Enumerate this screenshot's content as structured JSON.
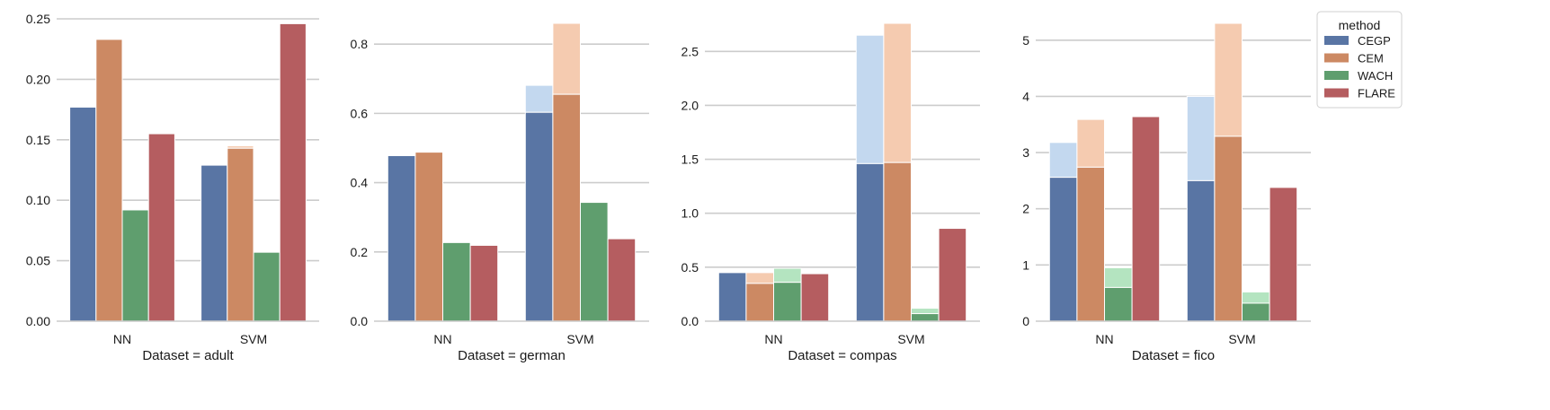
{
  "chart_data": [
    {
      "type": "bar",
      "xlabel": "Dataset = adult",
      "categories": [
        "NN",
        "SVM"
      ],
      "ylim": [
        0,
        0.25
      ],
      "yticks": [
        0.0,
        0.05,
        0.1,
        0.15,
        0.2,
        0.25
      ],
      "ytick_labels": [
        "0.00",
        "0.05",
        "0.10",
        "0.15",
        "0.20",
        "0.25"
      ],
      "grid": "y",
      "series": [
        {
          "name": "CEGP",
          "values": [
            0.177,
            0.129
          ],
          "upper": [
            0.177,
            0.129
          ]
        },
        {
          "name": "CEM",
          "values": [
            0.233,
            0.143
          ],
          "upper": [
            0.233,
            0.145
          ]
        },
        {
          "name": "WACH",
          "values": [
            0.092,
            0.057
          ],
          "upper": [
            0.092,
            0.057
          ]
        },
        {
          "name": "FLARE",
          "values": [
            0.155,
            0.246
          ],
          "upper": [
            0.155,
            0.246
          ]
        }
      ]
    },
    {
      "type": "bar",
      "xlabel": "Dataset = german",
      "categories": [
        "NN",
        "SVM"
      ],
      "ylim": [
        0,
        0.86
      ],
      "yticks": [
        0.0,
        0.2,
        0.4,
        0.6,
        0.8
      ],
      "ytick_labels": [
        "0.0",
        "0.2",
        "0.4",
        "0.6",
        "0.8"
      ],
      "grid": "y",
      "series": [
        {
          "name": "CEGP",
          "values": [
            0.478,
            0.603
          ],
          "upper": [
            0.478,
            0.681
          ]
        },
        {
          "name": "CEM",
          "values": [
            0.488,
            0.655
          ],
          "upper": [
            0.488,
            0.86
          ]
        },
        {
          "name": "WACH",
          "values": [
            0.227,
            0.343
          ],
          "upper": [
            0.227,
            0.343
          ]
        },
        {
          "name": "FLARE",
          "values": [
            0.219,
            0.238
          ],
          "upper": [
            0.219,
            0.238
          ]
        }
      ]
    },
    {
      "type": "bar",
      "xlabel": "Dataset = compas",
      "categories": [
        "NN",
        "SVM"
      ],
      "ylim": [
        0,
        2.76
      ],
      "yticks": [
        0.0,
        0.5,
        1.0,
        1.5,
        2.0,
        2.5
      ],
      "ytick_labels": [
        "0.0",
        "0.5",
        "1.0",
        "1.5",
        "2.0",
        "2.5"
      ],
      "grid": "y",
      "series": [
        {
          "name": "CEGP",
          "values": [
            0.45,
            1.46
          ],
          "upper": [
            0.45,
            2.65
          ]
        },
        {
          "name": "CEM",
          "values": [
            0.35,
            1.47
          ],
          "upper": [
            0.45,
            2.76
          ]
        },
        {
          "name": "WACH",
          "values": [
            0.36,
            0.07
          ],
          "upper": [
            0.49,
            0.12
          ]
        },
        {
          "name": "FLARE",
          "values": [
            0.44,
            0.86
          ],
          "upper": [
            0.44,
            0.86
          ]
        }
      ]
    },
    {
      "type": "bar",
      "xlabel": "Dataset = fico",
      "categories": [
        "NN",
        "SVM"
      ],
      "ylim": [
        0,
        5.3
      ],
      "yticks": [
        0,
        1,
        2,
        3,
        4,
        5
      ],
      "ytick_labels": [
        "0",
        "1",
        "2",
        "3",
        "4",
        "5"
      ],
      "grid": "y",
      "series": [
        {
          "name": "CEGP",
          "values": [
            2.56,
            2.5
          ],
          "upper": [
            3.18,
            4.0
          ]
        },
        {
          "name": "CEM",
          "values": [
            2.74,
            3.29
          ],
          "upper": [
            3.59,
            5.3
          ]
        },
        {
          "name": "WACH",
          "values": [
            0.6,
            0.32
          ],
          "upper": [
            0.95,
            0.52
          ]
        },
        {
          "name": "FLARE",
          "values": [
            3.64,
            2.38
          ],
          "upper": [
            3.64,
            2.38
          ]
        }
      ]
    }
  ],
  "legend": {
    "title": "method",
    "placement": "top-right",
    "entries": [
      {
        "label": "CEGP",
        "color": "#5975a4",
        "light": "#c3d8ef"
      },
      {
        "label": "CEM",
        "color": "#cc8963",
        "light": "#f5cbb0"
      },
      {
        "label": "WACH",
        "color": "#5f9e6e",
        "light": "#b4e4c0"
      },
      {
        "label": "FLARE",
        "color": "#b55d60",
        "light": "#e9b3b6"
      }
    ]
  },
  "colors": {
    "grid": "#cccccc",
    "axis": "#cccccc",
    "text": "#1a1a1a"
  }
}
